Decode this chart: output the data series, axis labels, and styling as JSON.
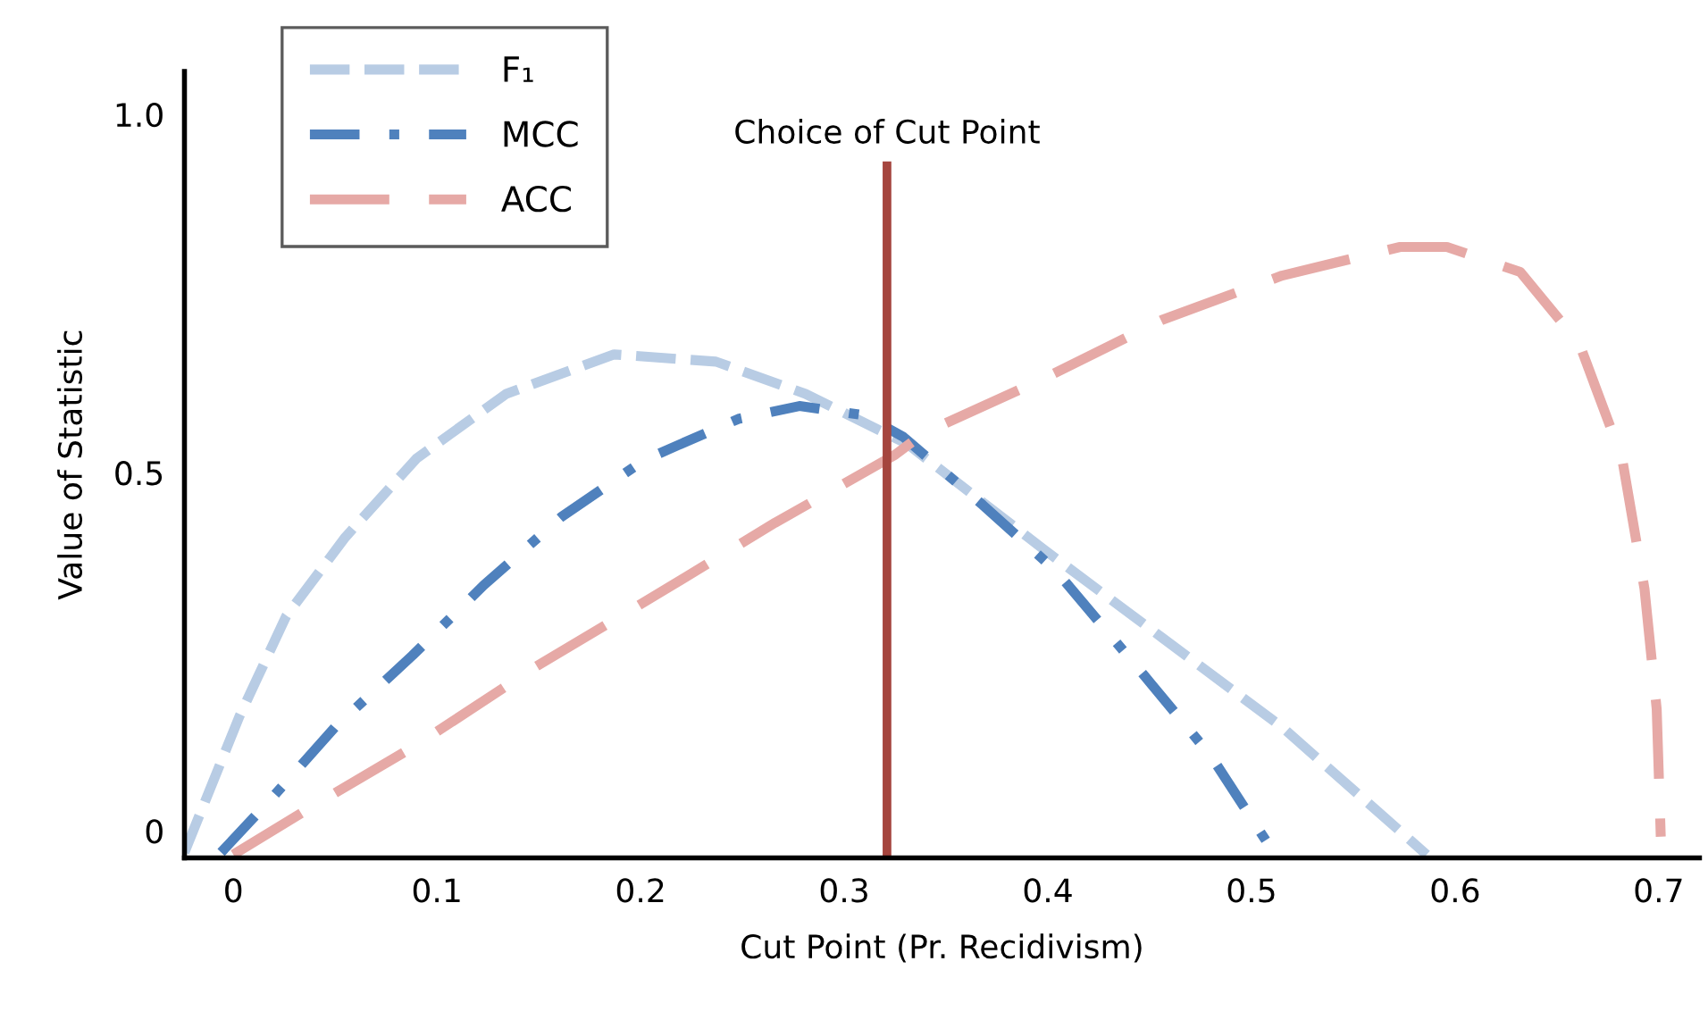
{
  "chart_data": {
    "type": "line",
    "xlabel": "Cut Point (Pr. Recidivism)",
    "ylabel": "Value of Statistic",
    "xlim": [
      -0.024,
      0.72
    ],
    "ylim": [
      -0.0375,
      1.06
    ],
    "xticks": [
      0,
      0.1,
      0.2,
      0.3,
      0.4,
      0.5,
      0.6,
      0.7
    ],
    "yticks": [
      0,
      0.5,
      {
        "value": 1.0,
        "label": "1.0"
      }
    ],
    "grid": false,
    "legend": "top left",
    "marker": "none",
    "ref_lines": [
      {
        "axis": "x",
        "value": 0.321,
        "label": "Choice of Cut Point",
        "color": "#a5453e",
        "line_style": "solid"
      }
    ],
    "series": [
      {
        "name": "F₁",
        "color": "#b8cce4",
        "line_style": "dashed",
        "x": [
          -0.024,
          0.003,
          0.026,
          0.055,
          0.09,
          0.134,
          0.187,
          0.237,
          0.281,
          0.331,
          0.397,
          0.456,
          0.515,
          0.586
        ],
        "values": [
          -0.03,
          0.16,
          0.3,
          0.41,
          0.52,
          0.61,
          0.665,
          0.655,
          0.61,
          0.54,
          0.395,
          0.27,
          0.145,
          -0.033
        ]
      },
      {
        "name": "MCC",
        "color": "#4f81bd",
        "line_style": "dashdot",
        "x": [
          -0.006,
          0.018,
          0.05,
          0.088,
          0.123,
          0.161,
          0.202,
          0.248,
          0.278,
          0.31,
          0.329,
          0.368,
          0.404,
          0.447,
          0.48,
          0.507
        ],
        "values": [
          -0.03,
          0.043,
          0.145,
          0.245,
          0.343,
          0.438,
          0.518,
          0.575,
          0.593,
          0.58,
          0.55,
          0.455,
          0.363,
          0.218,
          0.105,
          -0.013
        ]
      },
      {
        "name": "ACC",
        "color": "#e6a9a6",
        "line_style": "longdash",
        "x": [
          0,
          0.041,
          0.09,
          0.149,
          0.208,
          0.266,
          0.325,
          0.339,
          0.397,
          0.456,
          0.515,
          0.573,
          0.596,
          0.632,
          0.661,
          0.682,
          0.693,
          0.699,
          0.701
        ],
        "values": [
          -0.033,
          0.038,
          0.12,
          0.23,
          0.33,
          0.43,
          0.525,
          0.555,
          0.63,
          0.713,
          0.775,
          0.815,
          0.815,
          0.78,
          0.68,
          0.52,
          0.338,
          0.17,
          -0.008
        ]
      }
    ]
  }
}
